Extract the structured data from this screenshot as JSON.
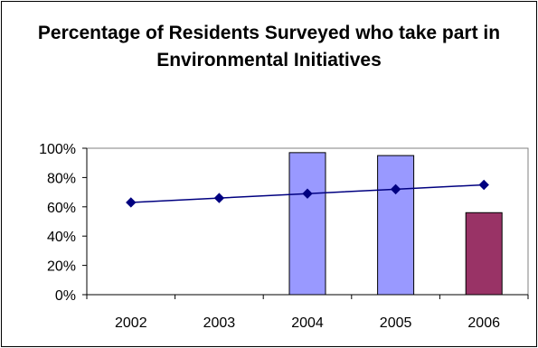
{
  "chart_data": {
    "type": "bar",
    "title": "Percentage of Residents Surveyed who take part in Environmental Initiatives",
    "categories": [
      "2002",
      "2003",
      "2004",
      "2005",
      "2006"
    ],
    "ylim": [
      0,
      100
    ],
    "yticks": [
      "100%",
      "80%",
      "60%",
      "40%",
      "20%",
      "0%"
    ],
    "grid": false,
    "series": [
      {
        "kind": "bar",
        "values": [
          null,
          null,
          97,
          95,
          56
        ],
        "colors": [
          "#9999ff",
          "#9999ff",
          "#9999ff",
          "#9999ff",
          "#993366"
        ]
      },
      {
        "kind": "line",
        "marker": "diamond",
        "color": "#000080",
        "values": [
          63,
          66,
          69,
          72,
          75
        ]
      }
    ]
  }
}
